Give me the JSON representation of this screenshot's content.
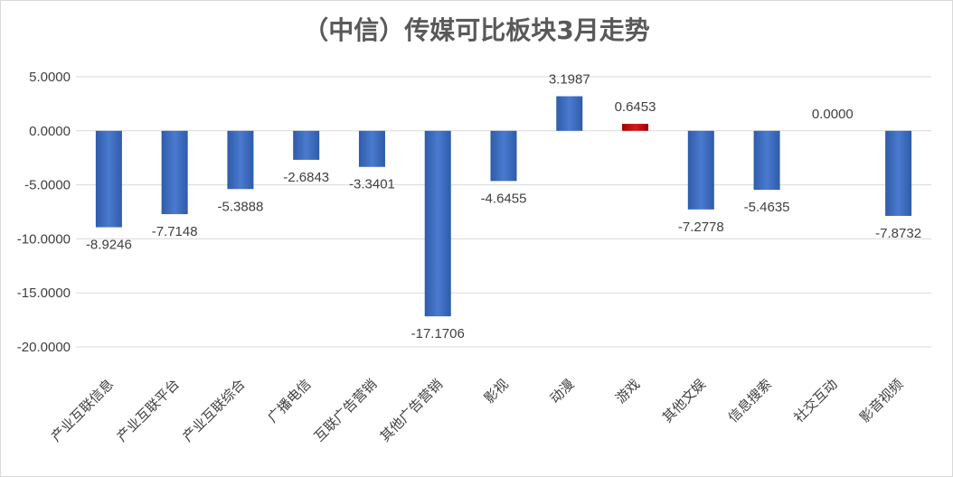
{
  "chart_data": {
    "type": "bar",
    "title": "（中信）传媒可比板块3月走势",
    "xlabel": "",
    "ylabel": "",
    "ylim": [
      -20,
      5
    ],
    "yticks": [
      5,
      0,
      -5,
      -10,
      -15,
      -20
    ],
    "ytick_labels": [
      "5.0000",
      "0.0000",
      "-5.0000",
      "-10.0000",
      "-15.0000",
      "-20.0000"
    ],
    "grid": true,
    "legend": "none",
    "categories": [
      "产业互联信息",
      "产业互联平台",
      "产业互联综合",
      "广播电信",
      "互联广告营销",
      "其他广告营销",
      "影视",
      "动漫",
      "游戏",
      "其他文娱",
      "信息搜索",
      "社交互动",
      "影音视频"
    ],
    "values": [
      -8.9246,
      -7.7148,
      -5.3888,
      -2.6843,
      -3.3401,
      -17.1706,
      -4.6455,
      3.1987,
      0.6453,
      -7.2778,
      -5.4635,
      0.0,
      -7.8732
    ],
    "value_labels": [
      "-8.9246",
      "-7.7148",
      "-5.3888",
      "-2.6843",
      "-3.3401",
      "-17.1706",
      "-4.6455",
      "3.1987",
      "0.6453",
      "-7.2778",
      "-5.4635",
      "0.0000",
      "-7.8732"
    ],
    "colors": {
      "default": "#4472c4",
      "highlight": "#c00000",
      "highlight_category": "游戏",
      "grid": "#d9d9d9"
    }
  }
}
